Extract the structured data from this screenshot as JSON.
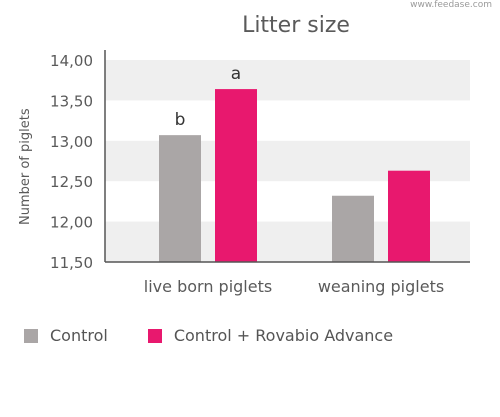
{
  "watermark": "www.feedase.com",
  "colors": {
    "control": "#aaa6a6",
    "rovabio": "#e8186e",
    "band": "#efefef",
    "axis": "#555555",
    "text": "#5a5a5a"
  },
  "legend": {
    "items": [
      {
        "label": "Control",
        "color": "#aaa6a6"
      },
      {
        "label": "Control + Rovabio Advance",
        "color": "#e8186e"
      }
    ]
  },
  "chart_data": {
    "type": "bar",
    "title": "Litter size",
    "xlabel": "",
    "ylabel": "Number of piglets",
    "ylim": [
      11.5,
      14.0
    ],
    "ticks": [
      11.5,
      12.0,
      12.5,
      13.0,
      13.5,
      14.0
    ],
    "tick_labels": [
      "11,50",
      "12,00",
      "12,50",
      "13,00",
      "13,50",
      "14,00"
    ],
    "categories": [
      "live born piglets",
      "weaning piglets"
    ],
    "series": [
      {
        "name": "Control",
        "values": [
          13.07,
          12.32
        ],
        "color": "#aaa6a6",
        "labels": [
          "b",
          ""
        ]
      },
      {
        "name": "Control + Rovabio Advance",
        "values": [
          13.64,
          12.63
        ],
        "color": "#e8186e",
        "labels": [
          "a",
          ""
        ]
      }
    ],
    "grid": "alternating-bands",
    "legend_position": "bottom"
  }
}
